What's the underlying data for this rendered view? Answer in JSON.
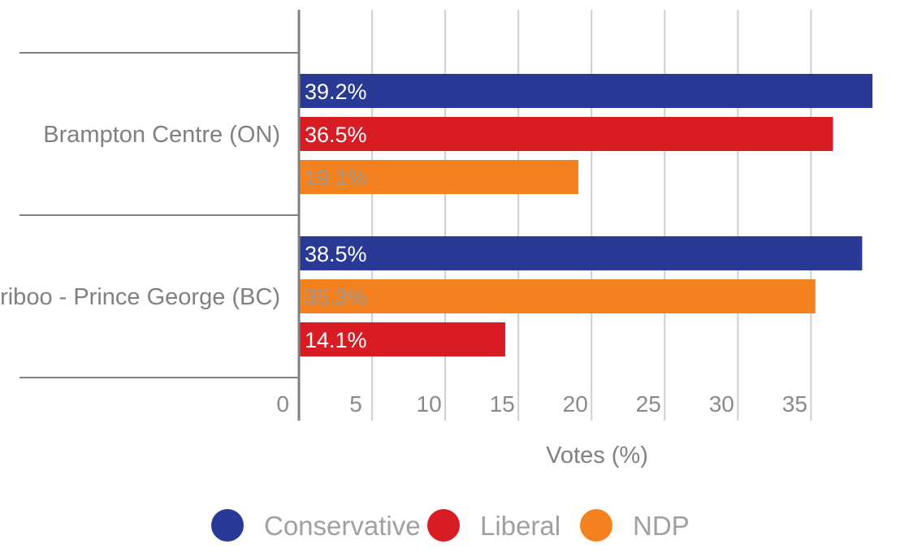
{
  "chart_data": {
    "type": "bar",
    "orientation": "horizontal",
    "xlabel": "Votes (%)",
    "xlim": [
      0,
      39.2
    ],
    "xticks": [
      0,
      5,
      10,
      15,
      20,
      25,
      30,
      35
    ],
    "grid": true,
    "legend_position": "bottom",
    "legend": [
      {
        "name": "Conservative",
        "color": "#293a96"
      },
      {
        "name": "Liberal",
        "color": "#d71c23"
      },
      {
        "name": "NDP",
        "color": "#f48220"
      }
    ],
    "groups": [
      {
        "category": "Brampton Centre (ON)",
        "bars": [
          {
            "party": "Conservative",
            "value": 39.2,
            "label": "39.2%",
            "color": "#293a96",
            "label_color": "#ffffff"
          },
          {
            "party": "Liberal",
            "value": 36.5,
            "label": "36.5%",
            "color": "#d71c23",
            "label_color": "#ffffff"
          },
          {
            "party": "NDP",
            "value": 19.1,
            "label": "19.1%",
            "color": "#f48220",
            "label_color": "#9a9a9a"
          }
        ]
      },
      {
        "category": "Cariboo - Prince George (BC)",
        "bars": [
          {
            "party": "Conservative",
            "value": 38.5,
            "label": "38.5%",
            "color": "#293a96",
            "label_color": "#ffffff"
          },
          {
            "party": "NDP",
            "value": 35.3,
            "label": "35.3%",
            "color": "#f48220",
            "label_color": "#9a9a9a"
          },
          {
            "party": "Liberal",
            "value": 14.1,
            "label": "14.1%",
            "color": "#d71c23",
            "label_color": "#ffffff"
          }
        ]
      }
    ]
  }
}
